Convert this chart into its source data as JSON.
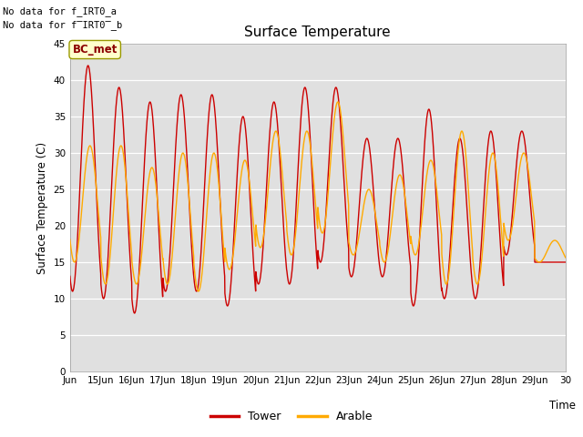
{
  "title": "Surface Temperature",
  "ylabel": "Surface Temperature (C)",
  "xlabel": "Time",
  "ylim": [
    0,
    45
  ],
  "yticks": [
    0,
    5,
    10,
    15,
    20,
    25,
    30,
    35,
    40,
    45
  ],
  "plot_bg_color": "#e0e0e0",
  "fig_background": "#ffffff",
  "tower_color": "#cc0000",
  "arable_color": "#ffaa00",
  "no_data_text_1": "No data for f_IRT0_a",
  "no_data_text_2": "No data for f̅IRT0̅b",
  "bc_met_label": "BC_met",
  "legend_labels": [
    "Tower",
    "Arable"
  ],
  "x_tick_labels": [
    "Jun",
    "15Jun",
    "16Jun",
    "17Jun",
    "18Jun",
    "19Jun",
    "20Jun",
    "21Jun",
    "22Jun",
    "23Jun",
    "24Jun",
    "25Jun",
    "26Jun",
    "27Jun",
    "28Jun",
    "29Jun",
    "30"
  ],
  "tower_peaks": [
    42,
    39,
    37,
    38,
    38,
    35,
    37,
    39,
    39,
    32,
    32,
    36,
    32,
    33,
    33,
    15
  ],
  "tower_mins": [
    11,
    10,
    8,
    11,
    11,
    9,
    12,
    12,
    15,
    13,
    13,
    9,
    10,
    10,
    16,
    15
  ],
  "arable_peaks": [
    31,
    31,
    28,
    30,
    30,
    29,
    33,
    33,
    37,
    25,
    27,
    29,
    33,
    30,
    30,
    18
  ],
  "arable_mins": [
    15,
    12,
    12,
    12,
    11,
    14,
    17,
    16,
    19,
    16,
    15,
    16,
    12,
    12,
    18,
    15
  ],
  "n_days": 16,
  "points_per_day": 144,
  "peak_hour": 14,
  "trough_hour": 5,
  "arable_lag_hours": 1.5
}
